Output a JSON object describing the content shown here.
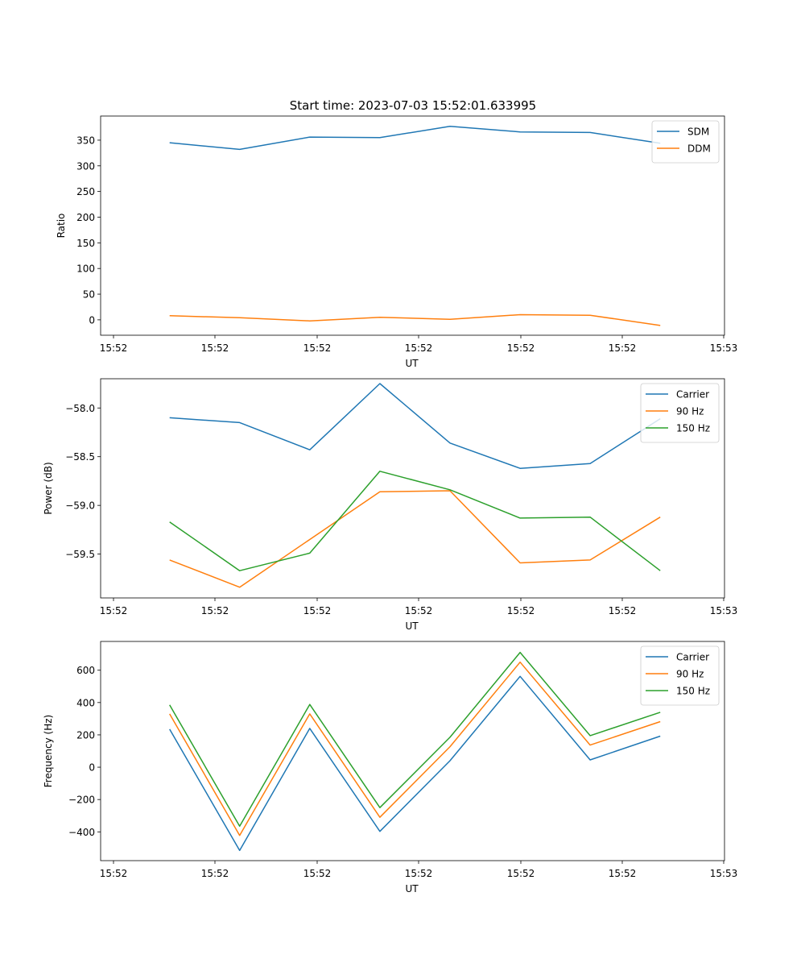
{
  "figure_title": "Start time: 2023-07-03 15:52:01.633995",
  "colors": {
    "c0": "#1f77b4",
    "c1": "#ff7f0e",
    "c2": "#2ca02c"
  },
  "chart_data": [
    {
      "type": "line",
      "title": "Start time: 2023-07-03 15:52:01.633995",
      "xlabel": "UT",
      "ylabel": "Ratio",
      "x": [
        1,
        2,
        3,
        4,
        5,
        6,
        7,
        8
      ],
      "xlim": [
        0.2,
        9.1
      ],
      "xticks": [
        0.2,
        1.72,
        3.24,
        4.76,
        6.28,
        7.8,
        9.32
      ],
      "xtick_labels": [
        "15:52",
        "15:52",
        "15:52",
        "15:52",
        "15:52",
        "15:52",
        "15:53"
      ],
      "ylim": [
        -30,
        397
      ],
      "yticks": [
        0,
        50,
        100,
        150,
        200,
        250,
        300,
        350
      ],
      "ytick_labels": [
        "0",
        "50",
        "100",
        "150",
        "200",
        "250",
        "300",
        "350"
      ],
      "legend_position": "top-right",
      "series": [
        {
          "name": "SDM",
          "color": "#1f77b4",
          "values": [
            345,
            332,
            356,
            355,
            377,
            366,
            365,
            344
          ]
        },
        {
          "name": "DDM",
          "color": "#ff7f0e",
          "values": [
            8,
            4,
            -2,
            5,
            1,
            10,
            9,
            -11
          ]
        }
      ]
    },
    {
      "type": "line",
      "xlabel": "UT",
      "ylabel": "Power (dB)",
      "x": [
        1,
        2,
        3,
        4,
        5,
        6,
        7,
        8
      ],
      "xlim": [
        0.2,
        9.1
      ],
      "xticks": [
        0.2,
        1.72,
        3.24,
        4.76,
        6.28,
        7.8,
        9.32
      ],
      "xtick_labels": [
        "15:52",
        "15:52",
        "15:52",
        "15:52",
        "15:52",
        "15:52",
        "15:53"
      ],
      "ylim": [
        -59.95,
        -57.7
      ],
      "yticks": [
        -59.5,
        -59.0,
        -58.5,
        -58.0
      ],
      "ytick_labels": [
        "−59.5",
        "−59.0",
        "−58.5",
        "−58.0"
      ],
      "legend_position": "top-right",
      "series": [
        {
          "name": "Carrier",
          "color": "#1f77b4",
          "values": [
            -58.1,
            -58.15,
            -58.43,
            -57.75,
            -58.36,
            -58.62,
            -58.57,
            -58.11
          ]
        },
        {
          "name": "90 Hz",
          "color": "#ff7f0e",
          "values": [
            -59.56,
            -59.84,
            -59.35,
            -58.86,
            -58.85,
            -59.59,
            -59.56,
            -59.12
          ]
        },
        {
          "name": "150 Hz",
          "color": "#2ca02c",
          "values": [
            -59.17,
            -59.67,
            -59.49,
            -58.65,
            -58.84,
            -59.13,
            -59.12,
            -59.67
          ]
        }
      ]
    },
    {
      "type": "line",
      "xlabel": "UT",
      "ylabel": "Frequency (Hz)",
      "x": [
        1,
        2,
        3,
        4,
        5,
        6,
        7,
        8
      ],
      "xlim": [
        0.2,
        9.1
      ],
      "xticks": [
        0.2,
        1.72,
        3.24,
        4.76,
        6.28,
        7.8,
        9.32
      ],
      "xtick_labels": [
        "15:52",
        "15:52",
        "15:52",
        "15:52",
        "15:52",
        "15:52",
        "15:53"
      ],
      "ylim": [
        -578,
        778
      ],
      "yticks": [
        -400,
        -200,
        0,
        200,
        400,
        600
      ],
      "ytick_labels": [
        "−400",
        "−200",
        "0",
        "200",
        "400",
        "600"
      ],
      "legend_position": "top-right",
      "series": [
        {
          "name": "Carrier",
          "color": "#1f77b4",
          "values": [
            235,
            -515,
            240,
            -397,
            40,
            562,
            45,
            192
          ]
        },
        {
          "name": "90 Hz",
          "color": "#ff7f0e",
          "values": [
            330,
            -422,
            330,
            -310,
            127,
            650,
            137,
            282
          ]
        },
        {
          "name": "150 Hz",
          "color": "#2ca02c",
          "values": [
            385,
            -365,
            388,
            -250,
            185,
            710,
            195,
            340
          ]
        }
      ]
    }
  ]
}
